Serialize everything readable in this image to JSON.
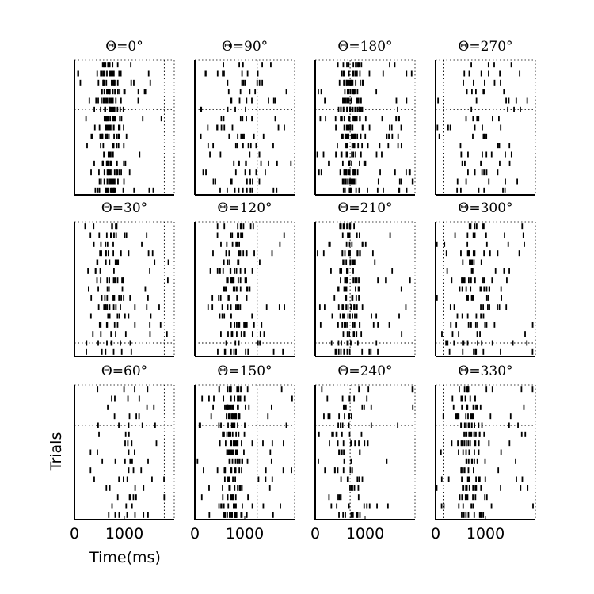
{
  "chart_data": {
    "type": "raster",
    "xlabel": "Time(ms)",
    "ylabel": "Trials",
    "xlim": [
      0,
      2000
    ],
    "xticks": [
      0,
      1000
    ],
    "xtick_labels": [
      "0",
      "1000"
    ],
    "n_trials": 15,
    "panels": [
      {
        "title": "Θ=0°",
        "angle": 0,
        "row": 0,
        "col": 0,
        "marker_time": 1800,
        "marker_trial": 5.5,
        "center": 700,
        "spread": 260,
        "rate": 14,
        "seed": 11
      },
      {
        "title": "Θ=90°",
        "angle": 90,
        "row": 0,
        "col": 1,
        "marker_time": 1250,
        "marker_trial": 5.5,
        "center": 900,
        "spread": 620,
        "rate": 7,
        "seed": 23
      },
      {
        "title": "Θ=180°",
        "angle": 180,
        "row": 0,
        "col": 2,
        "marker_time": 700,
        "marker_trial": 5.5,
        "center": 700,
        "spread": 240,
        "rate": 16,
        "seed": 37
      },
      {
        "title": "Θ=270°",
        "angle": 270,
        "row": 0,
        "col": 3,
        "marker_time": 150,
        "marker_trial": 5.5,
        "center": 1000,
        "spread": 650,
        "rate": 5,
        "seed": 41
      },
      {
        "title": "Θ=30°",
        "angle": 30,
        "row": 1,
        "col": 0,
        "marker_time": 1800,
        "marker_trial": 13.5,
        "center": 750,
        "spread": 360,
        "rate": 9,
        "seed": 53
      },
      {
        "title": "Θ=120°",
        "angle": 120,
        "row": 1,
        "col": 1,
        "marker_time": 1250,
        "marker_trial": 13.5,
        "center": 800,
        "spread": 380,
        "rate": 10,
        "seed": 61
      },
      {
        "title": "Θ=210°",
        "angle": 210,
        "row": 1,
        "col": 2,
        "marker_time": 700,
        "marker_trial": 13.5,
        "center": 650,
        "spread": 330,
        "rate": 11,
        "seed": 71
      },
      {
        "title": "Θ=300°",
        "angle": 300,
        "row": 1,
        "col": 3,
        "marker_time": 150,
        "marker_trial": 13.5,
        "center": 800,
        "spread": 520,
        "rate": 9,
        "seed": 83
      },
      {
        "title": "Θ=60°",
        "angle": 60,
        "row": 2,
        "col": 0,
        "marker_time": 1800,
        "marker_trial": 4.5,
        "center": 1000,
        "spread": 600,
        "rate": 5,
        "seed": 97
      },
      {
        "title": "Θ=150°",
        "angle": 150,
        "row": 2,
        "col": 1,
        "marker_time": 1250,
        "marker_trial": 4.5,
        "center": 750,
        "spread": 240,
        "rate": 14,
        "seed": 101
      },
      {
        "title": "Θ=240°",
        "angle": 240,
        "row": 2,
        "col": 2,
        "marker_time": 700,
        "marker_trial": 4.5,
        "center": 650,
        "spread": 420,
        "rate": 6,
        "seed": 113
      },
      {
        "title": "Θ=330°",
        "angle": 330,
        "row": 2,
        "col": 3,
        "marker_time": 150,
        "marker_trial": 4.5,
        "center": 700,
        "spread": 280,
        "rate": 12,
        "seed": 127
      }
    ]
  }
}
